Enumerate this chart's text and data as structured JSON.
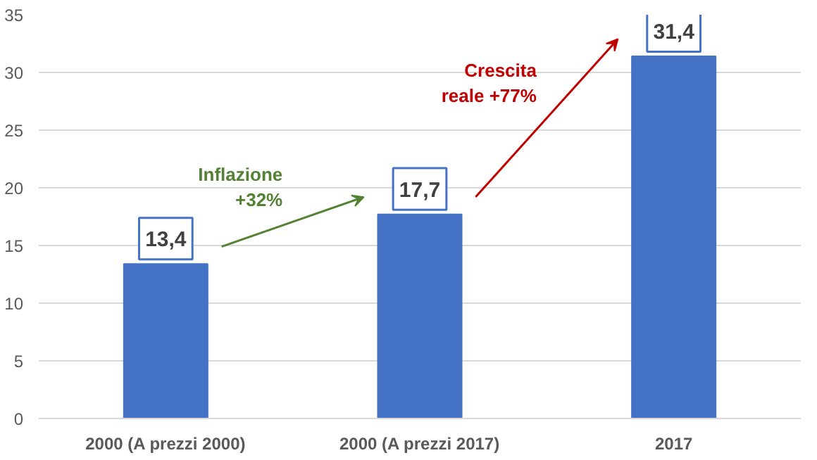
{
  "chart_data": {
    "type": "bar",
    "categories": [
      "2000 (A prezzi 2000)",
      "2000 (A prezzi 2017)",
      "2017"
    ],
    "values": [
      13.4,
      17.7,
      31.4
    ],
    "color": "#4472c4",
    "value_labels": [
      "13,4",
      "17,7",
      "31,4"
    ],
    "ylim": [
      0,
      35
    ],
    "yticks": [
      0,
      5,
      10,
      15,
      20,
      25,
      30,
      35
    ],
    "grid": "y",
    "annotations": [
      "Inflazione\n+32%",
      "Crescita\nreale +77%"
    ]
  }
}
